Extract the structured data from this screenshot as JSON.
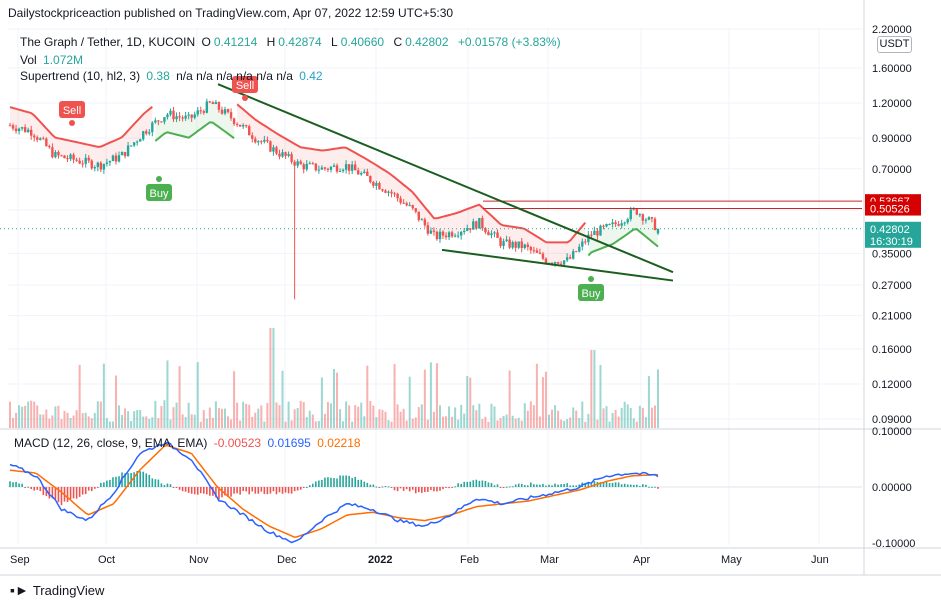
{
  "header": {
    "publisher": "Dailystockpriceaction published on TradingView.com, Apr 07, 2022 12:59 UTC+5:30"
  },
  "symbol": {
    "title": "The Graph / Tether, 1D, KUCOIN",
    "open_label": "O",
    "open": "0.41214",
    "high_label": "H",
    "high": "0.42874",
    "low_label": "L",
    "low": "0.40660",
    "close_label": "C",
    "close": "0.42802",
    "change": "+0.01578 (+3.83%)"
  },
  "volume": {
    "label": "Vol",
    "value": "1.072M"
  },
  "supertrend": {
    "label": "Supertrend (10, hl2, 3)",
    "value": "0.38",
    "na": "n/a n/a n/a n/a n/a n/a",
    "value2": "0.42",
    "sell_label": "Sell",
    "buy_label": "Buy"
  },
  "macd": {
    "label": "MACD (12, 26, close, 9, EMA, EMA)",
    "hist": "-0.00523",
    "macd": "0.01695",
    "signal": "0.02218"
  },
  "currency": "USDT",
  "price_tags": {
    "last": "0.42802",
    "timer": "16:30:19",
    "level_upper": "0.53667",
    "level_lower": "0.50526"
  },
  "colors": {
    "up": "#26a69a",
    "down": "#ef5350",
    "trendline": "#1b5e20",
    "supertrend_up": "#4caf50",
    "supertrend_down": "#ef5350",
    "macd_line": "#2962ff",
    "signal_line": "#ff6d00"
  },
  "brand": "TradingView",
  "chart_data": {
    "type": "candlestick",
    "scale": "log",
    "y_ticks": [
      "2.20000",
      "1.60000",
      "1.20000",
      "0.90000",
      "0.70000",
      "0.50000",
      "0.35000",
      "0.27000",
      "0.21000",
      "0.16000",
      "0.12000",
      "0.09000"
    ],
    "x_ticks": [
      "Sep",
      "Oct",
      "Nov",
      "Dec",
      "2022",
      "Feb",
      "Mar",
      "Apr",
      "May",
      "Jun"
    ],
    "macd_ticks": [
      "0.10000",
      "0.00000",
      "-0.10000"
    ],
    "price_path": [
      [
        "Sep",
        1.0
      ],
      [
        "Sep",
        0.95
      ],
      [
        "Sep",
        0.78
      ],
      [
        "Oct",
        0.75
      ],
      [
        "Oct",
        0.72
      ],
      [
        "Oct",
        0.78
      ],
      [
        "Oct",
        0.95
      ],
      [
        "Nov",
        1.1
      ],
      [
        "Nov",
        1.05
      ],
      [
        "Nov",
        1.2
      ],
      [
        "Nov",
        1.05
      ],
      [
        "Dec",
        0.9
      ],
      [
        "Dec",
        0.8
      ],
      [
        "Dec",
        0.72
      ],
      [
        "Dec",
        0.7
      ],
      [
        "2022",
        0.72
      ],
      [
        "2022",
        0.65
      ],
      [
        "2022",
        0.58
      ],
      [
        "2022",
        0.5
      ],
      [
        "Feb",
        0.4
      ],
      [
        "Feb",
        0.42
      ],
      [
        "Feb",
        0.45
      ],
      [
        "Feb",
        0.38
      ],
      [
        "Mar",
        0.37
      ],
      [
        "Mar",
        0.33
      ],
      [
        "Mar",
        0.33
      ],
      [
        "Mar",
        0.41
      ],
      [
        "Apr",
        0.44
      ],
      [
        "Apr",
        0.5
      ],
      [
        "Apr",
        0.43
      ]
    ],
    "dec_wick_low": 0.24,
    "horizontal_levels": [
      0.53667,
      0.50526
    ],
    "last_price": 0.42802,
    "trendlines": [
      {
        "from": [
          "Nov",
          1.4
        ],
        "to": [
          "Apr",
          0.3
        ]
      },
      {
        "from": [
          "Feb",
          0.36
        ],
        "to": [
          "Apr",
          0.28
        ]
      }
    ],
    "supertrend_signals": [
      {
        "type": "Sell",
        "x": "Sep"
      },
      {
        "type": "Buy",
        "x": "Oct"
      },
      {
        "type": "Sell",
        "x": "Nov"
      },
      {
        "type": "Buy",
        "x": "Mar"
      }
    ],
    "macd": {
      "hist": -0.00523,
      "macd": 0.01695,
      "signal": 0.02218
    }
  }
}
